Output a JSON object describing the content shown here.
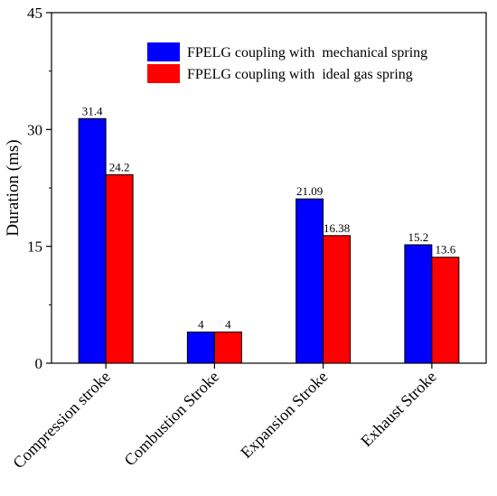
{
  "chart_data": {
    "type": "bar",
    "title": "",
    "xlabel": "",
    "ylabel": "Duration (ms)",
    "ylim": [
      0,
      45
    ],
    "yticks": [
      0,
      15,
      30,
      45
    ],
    "grid": false,
    "legend_position": "top-right",
    "categories": [
      "Compression stroke",
      "Combustion Stroke",
      "Expansion Stroke",
      "Exhaust Stroke"
    ],
    "series": [
      {
        "name": "FPELG coupling with  mechanical spring",
        "color": "#0000ff",
        "values": [
          31.4,
          4,
          21.09,
          15.2
        ],
        "labels": [
          "31.4",
          "4",
          "21.09",
          "15.2"
        ]
      },
      {
        "name": "FPELG coupling with  ideal gas spring",
        "color": "#ff0000",
        "values": [
          24.2,
          4,
          16.38,
          13.6
        ],
        "labels": [
          "24.2",
          "4",
          "16.38",
          "13.6"
        ]
      }
    ]
  }
}
